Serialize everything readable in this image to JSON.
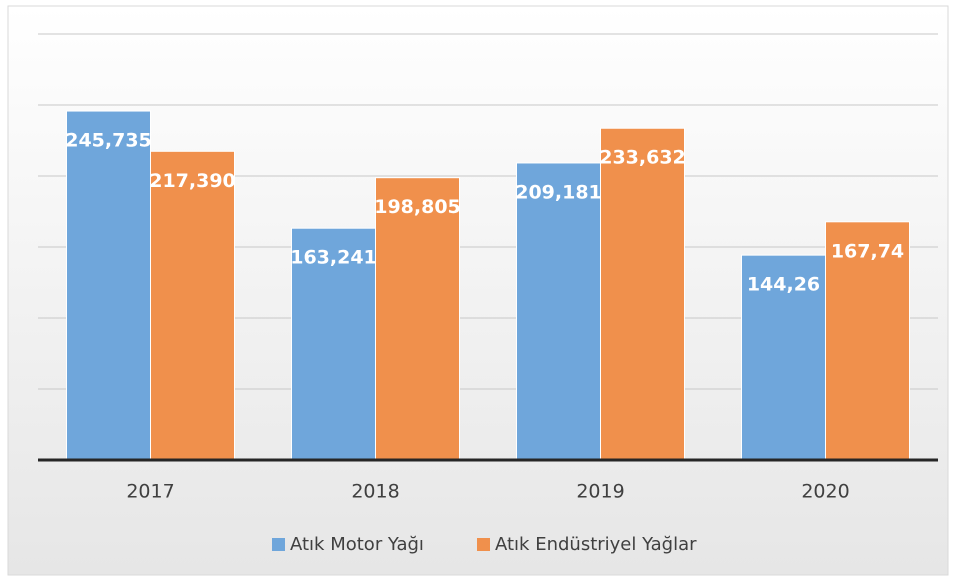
{
  "chart_data": {
    "type": "bar",
    "categories": [
      "2017",
      "2018",
      "2019",
      "2020"
    ],
    "series": [
      {
        "name": "Atık Motor Yağı",
        "color": "#6fa6db",
        "values": [
          245.735,
          163.241,
          209.181,
          144.26
        ],
        "value_labels": [
          "245,735",
          "163,241",
          "209,181",
          "144,26"
        ]
      },
      {
        "name": "Atık Endüstriyel Yağlar",
        "color": "#f0904c",
        "values": [
          217.39,
          198.805,
          233.632,
          167.74
        ],
        "value_labels": [
          "217,390",
          "198,805",
          "233,632",
          "167,74"
        ]
      }
    ],
    "ylim": [
      0,
      300
    ],
    "yticks": [
      0,
      50,
      100,
      150,
      200,
      250,
      300
    ],
    "grid": true
  }
}
